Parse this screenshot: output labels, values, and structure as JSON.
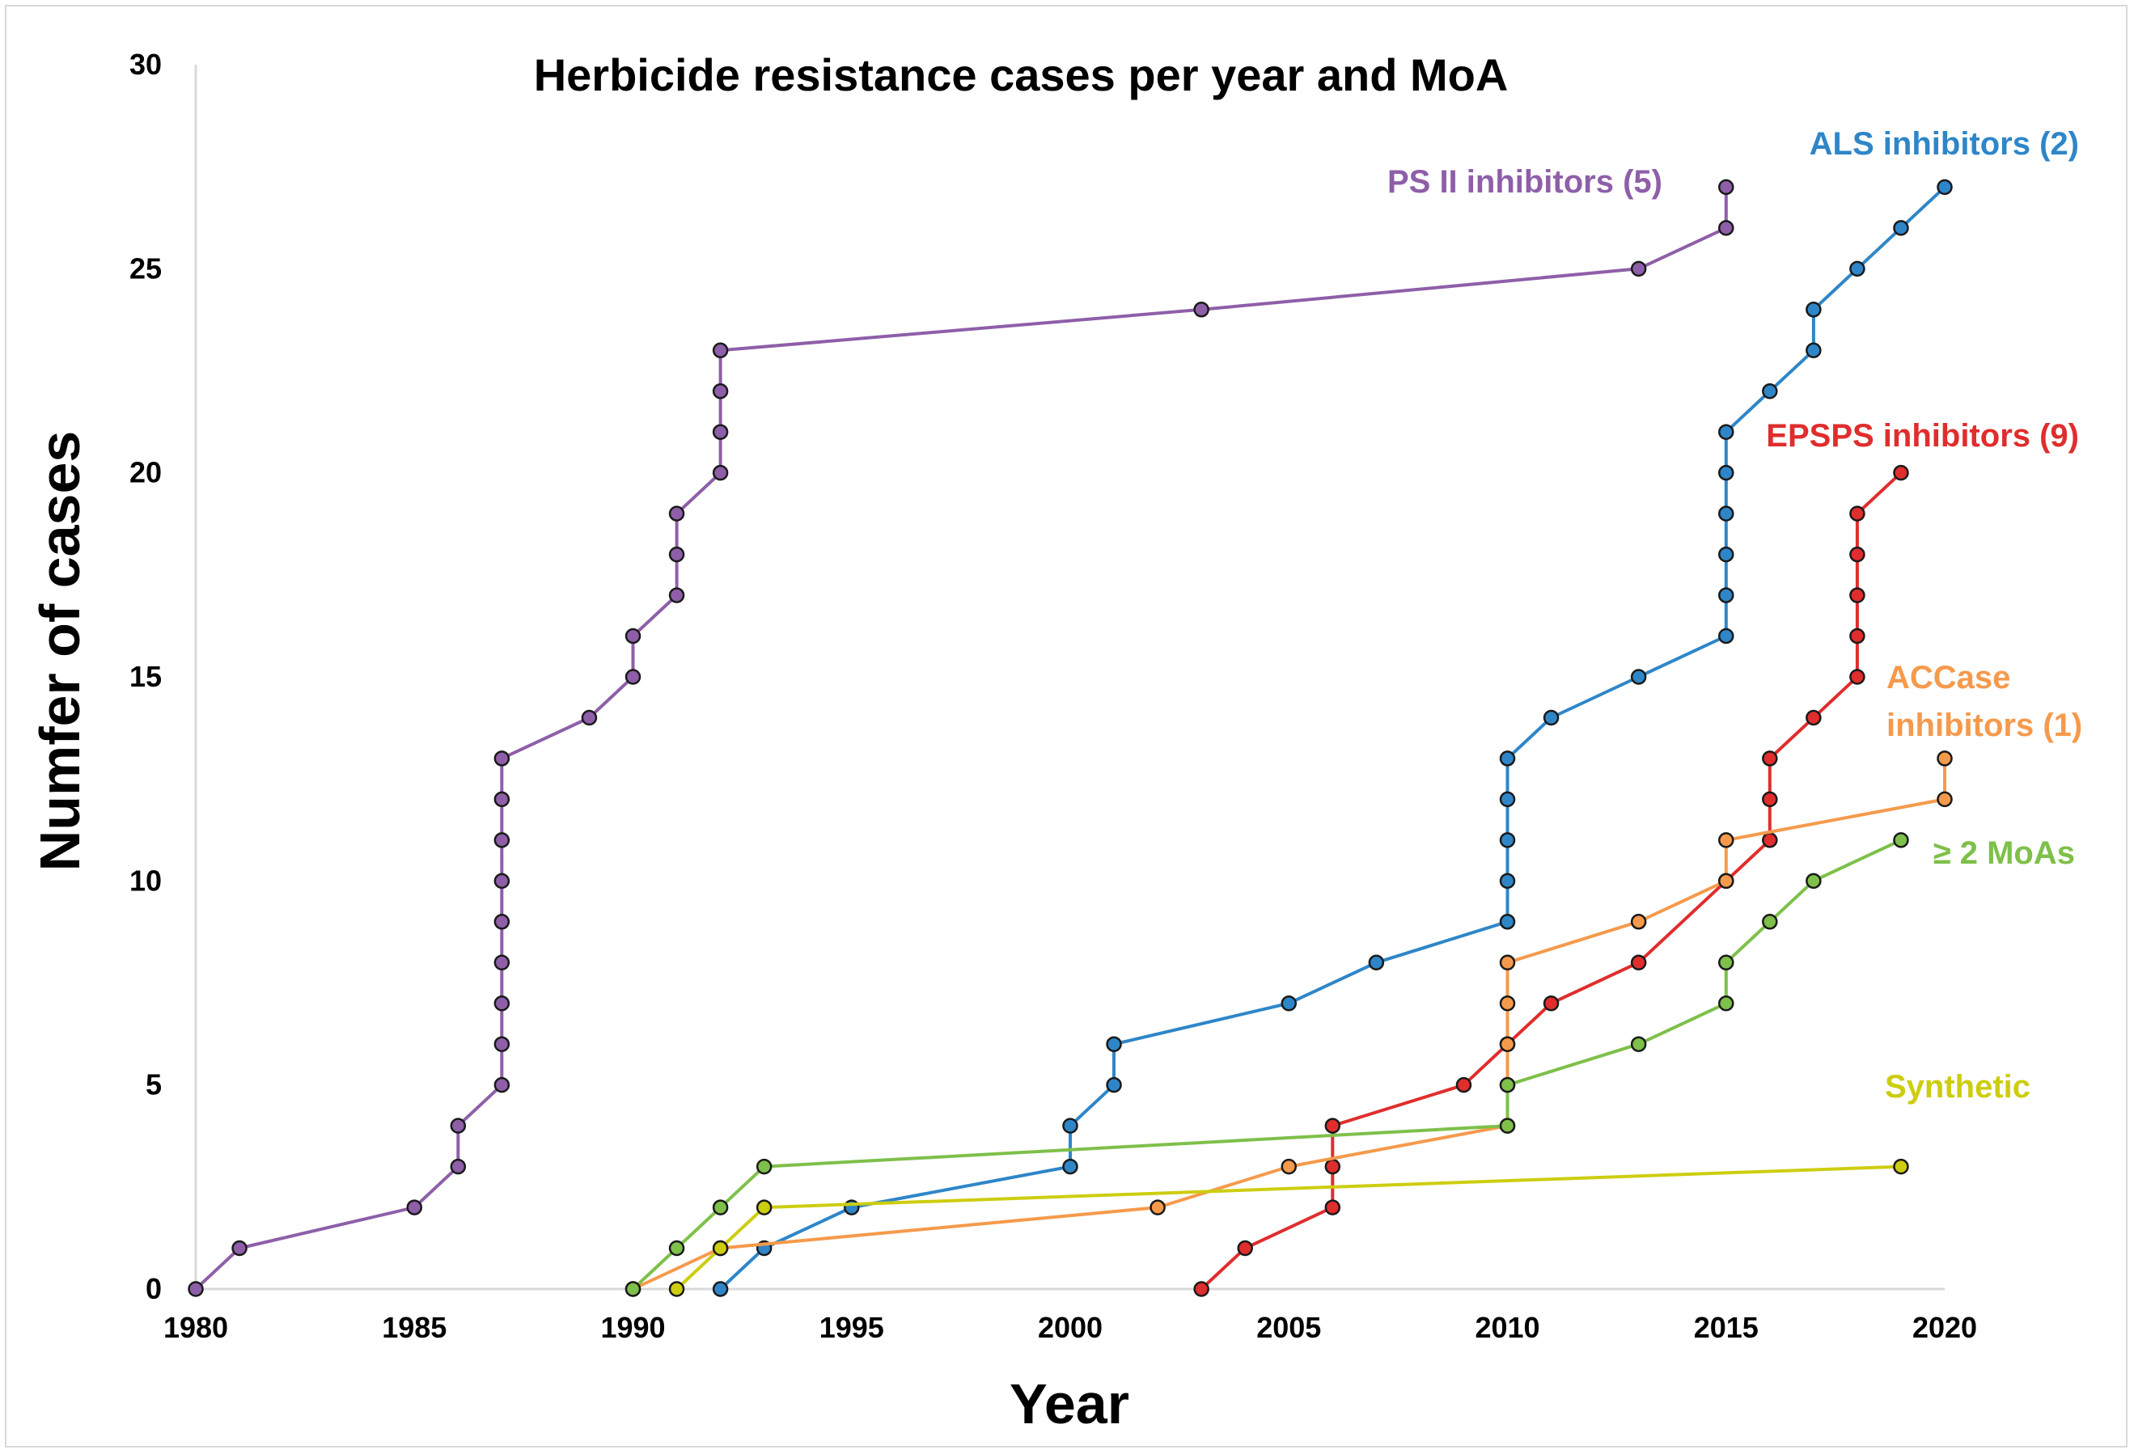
{
  "chart_data": {
    "type": "line",
    "title": "Herbicide resistance cases per year and MoA",
    "xlabel": "Year",
    "ylabel": "Numfer of cases",
    "xlim": [
      1980,
      2020
    ],
    "ylim": [
      0,
      30
    ],
    "x_ticks": [
      1980,
      1985,
      1990,
      1995,
      2000,
      2005,
      2010,
      2015,
      2020
    ],
    "y_ticks": [
      0,
      5,
      10,
      15,
      20,
      25,
      30
    ],
    "grid": false,
    "series": [
      {
        "name": "PS II inhibitors (5)",
        "color": "#8e5fa8",
        "points": [
          [
            1980,
            0
          ],
          [
            1981,
            1
          ],
          [
            1985,
            2
          ],
          [
            1986,
            3
          ],
          [
            1986,
            4
          ],
          [
            1987,
            5
          ],
          [
            1987,
            6
          ],
          [
            1987,
            7
          ],
          [
            1987,
            8
          ],
          [
            1987,
            9
          ],
          [
            1987,
            10
          ],
          [
            1987,
            11
          ],
          [
            1987,
            12
          ],
          [
            1987,
            13
          ],
          [
            1989,
            14
          ],
          [
            1990,
            15
          ],
          [
            1990,
            16
          ],
          [
            1991,
            17
          ],
          [
            1991,
            18
          ],
          [
            1991,
            19
          ],
          [
            1992,
            20
          ],
          [
            1992,
            21
          ],
          [
            1992,
            22
          ],
          [
            1992,
            23
          ],
          [
            2003,
            24
          ],
          [
            2013,
            25
          ],
          [
            2015,
            26
          ],
          [
            2015,
            27
          ]
        ]
      },
      {
        "name": "ALS inhibitors (2)",
        "color": "#2e86c8",
        "points": [
          [
            1992,
            0
          ],
          [
            1993,
            1
          ],
          [
            1995,
            2
          ],
          [
            2000,
            3
          ],
          [
            2000,
            4
          ],
          [
            2001,
            5
          ],
          [
            2001,
            6
          ],
          [
            2005,
            7
          ],
          [
            2007,
            8
          ],
          [
            2010,
            9
          ],
          [
            2010,
            10
          ],
          [
            2010,
            11
          ],
          [
            2010,
            12
          ],
          [
            2010,
            13
          ],
          [
            2011,
            14
          ],
          [
            2013,
            15
          ],
          [
            2015,
            16
          ],
          [
            2015,
            17
          ],
          [
            2015,
            18
          ],
          [
            2015,
            19
          ],
          [
            2015,
            20
          ],
          [
            2015,
            21
          ],
          [
            2016,
            22
          ],
          [
            2017,
            23
          ],
          [
            2017,
            24
          ],
          [
            2018,
            25
          ],
          [
            2019,
            26
          ],
          [
            2020,
            27
          ]
        ]
      },
      {
        "name": "EPSPS inhibitors (9)",
        "color": "#e02d2d",
        "points": [
          [
            2003,
            0
          ],
          [
            2004,
            1
          ],
          [
            2006,
            2
          ],
          [
            2006,
            3
          ],
          [
            2006,
            4
          ],
          [
            2009,
            5
          ],
          [
            2010,
            6
          ],
          [
            2011,
            7
          ],
          [
            2013,
            8
          ],
          [
            2015,
            10
          ],
          [
            2016,
            11
          ],
          [
            2016,
            12
          ],
          [
            2016,
            13
          ],
          [
            2017,
            14
          ],
          [
            2018,
            15
          ],
          [
            2018,
            16
          ],
          [
            2018,
            17
          ],
          [
            2018,
            18
          ],
          [
            2018,
            19
          ],
          [
            2019,
            20
          ]
        ]
      },
      {
        "name": "ACCase inhibitors (1)",
        "color": "#f59a4c",
        "points": [
          [
            1990,
            0
          ],
          [
            1992,
            1
          ],
          [
            2002,
            2
          ],
          [
            2005,
            3
          ],
          [
            2010,
            4
          ],
          [
            2010,
            5
          ],
          [
            2010,
            6
          ],
          [
            2010,
            7
          ],
          [
            2010,
            8
          ],
          [
            2013,
            9
          ],
          [
            2015,
            10
          ],
          [
            2015,
            11
          ],
          [
            2020,
            12
          ],
          [
            2020,
            13
          ]
        ]
      },
      {
        "name": "≥ 2 MoAs",
        "color": "#7ec04a",
        "points": [
          [
            1990,
            0
          ],
          [
            1991,
            1
          ],
          [
            1992,
            2
          ],
          [
            1993,
            3
          ],
          [
            2010,
            4
          ],
          [
            2010,
            5
          ],
          [
            2013,
            6
          ],
          [
            2015,
            7
          ],
          [
            2015,
            8
          ],
          [
            2016,
            9
          ],
          [
            2017,
            10
          ],
          [
            2019,
            11
          ]
        ]
      },
      {
        "name": "Synthetic",
        "color": "#cdcd10",
        "points": [
          [
            1991,
            0
          ],
          [
            1992,
            1
          ],
          [
            1993,
            2
          ],
          [
            2019,
            3
          ]
        ]
      }
    ],
    "annotations": [
      {
        "text": "PS II inhibitors (5)",
        "series": "PS II inhibitors (5)"
      },
      {
        "text": "ALS inhibitors (2)",
        "series": "ALS inhibitors (2)"
      },
      {
        "text": "EPSPS inhibitors (9)",
        "series": "EPSPS inhibitors (9)"
      },
      {
        "text": "ACCase",
        "series": "ACCase inhibitors (1)"
      },
      {
        "text": "inhibitors (1)",
        "series": "ACCase inhibitors (1)"
      },
      {
        "text": "≥ 2 MoAs",
        "series": "≥ 2 MoAs"
      },
      {
        "text": "Synthetic",
        "series": "Synthetic"
      }
    ]
  }
}
